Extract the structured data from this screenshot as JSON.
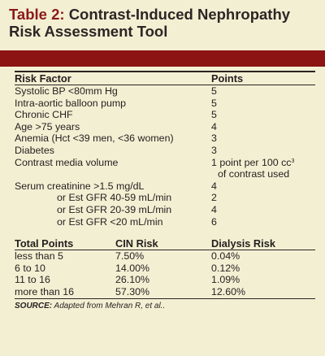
{
  "title": {
    "prefix": "Table 2:",
    "line1": "Contrast-Induced Nephropathy",
    "line2": "Risk Assessment Tool"
  },
  "risk_table": {
    "headers": {
      "factor": "Risk Factor",
      "points": "Points"
    },
    "rows": [
      {
        "factor": "Systolic BP <80mm Hg",
        "points": "5"
      },
      {
        "factor": "Intra-aortic balloon pump",
        "points": "5"
      },
      {
        "factor": "Chronic CHF",
        "points": "5"
      },
      {
        "factor": "Age >75 years",
        "points": "4"
      },
      {
        "factor": "Anemia (Hct <39 men, <36 women)",
        "points": "3"
      },
      {
        "factor": "Diabetes",
        "points": "3"
      },
      {
        "factor": "Contrast media volume",
        "points": "1 point per 100 cc",
        "points_sup": "3",
        "points_line2": "of contrast used"
      },
      {
        "factor": "Serum creatinine >1.5 mg/dL",
        "points": "4"
      },
      {
        "factor": "or Est GFR 40-59 mL/min",
        "points": "2"
      },
      {
        "factor": "or Est GFR 20-39 mL/min",
        "points": "4"
      },
      {
        "factor": "or Est GFR <20 mL/min",
        "points": "6"
      }
    ]
  },
  "score_table": {
    "headers": {
      "total": "Total Points",
      "cin": "CIN Risk",
      "dialysis": "Dialysis Risk"
    },
    "rows": [
      {
        "total": "less than 5",
        "cin": "7.50%",
        "dialysis": "0.04%"
      },
      {
        "total": "6 to 10",
        "cin": "14.00%",
        "dialysis": "0.12%"
      },
      {
        "total": "11 to 16",
        "cin": "26.10%",
        "dialysis": "1.09%"
      },
      {
        "total": "more than 16",
        "cin": "57.30%",
        "dialysis": "12.60%"
      }
    ]
  },
  "source": {
    "label": "SOURCE:",
    "text": " Adapted from Mehran R, et al.."
  },
  "colors": {
    "background": "#f3efd3",
    "title_bar": "#8c1413",
    "title_accent": "#8b1a1a",
    "text": "#231f1e"
  }
}
